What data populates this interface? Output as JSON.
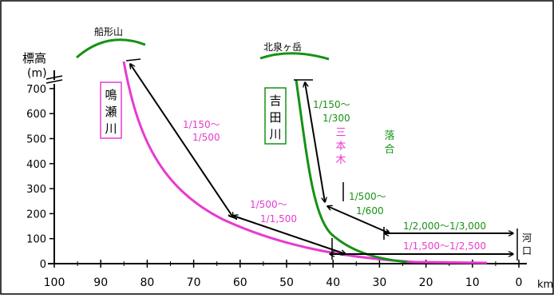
{
  "axes": {
    "y_title": [
      "標高",
      "(m)"
    ],
    "y_ticks": [
      "0",
      "100",
      "200",
      "300",
      "400",
      "500",
      "600",
      "700"
    ],
    "x_ticks": [
      "100",
      "90",
      "80",
      "70",
      "60",
      "50",
      "40",
      "30",
      "20",
      "10",
      "0"
    ],
    "x_unit": "km"
  },
  "mountains": {
    "funagata": "船形山",
    "kitaizumi": "北泉ヶ岳"
  },
  "rivers": {
    "naruse": [
      "鳴",
      "瀬",
      "川"
    ],
    "yoshida": [
      "吉",
      "田",
      "川"
    ],
    "sanbongi": [
      "三",
      "本",
      "木"
    ],
    "ochiai": [
      "落",
      "合"
    ],
    "kakou": [
      "河",
      "口"
    ]
  },
  "slopes": {
    "naruse_upper": [
      "1/150～",
      "1/500"
    ],
    "naruse_middle": [
      "1/500～",
      "1/1,500"
    ],
    "naruse_lower": "1/1,500～1/2,500",
    "yoshida_upper": [
      "1/150～",
      "1/300"
    ],
    "yoshida_middle": [
      "1/500～",
      "1/600"
    ],
    "yoshida_lower": "1/2,000～1/3,000"
  },
  "colors": {
    "naruse": "#e83ad0",
    "yoshida": "#159215",
    "axis": "#000000"
  }
}
